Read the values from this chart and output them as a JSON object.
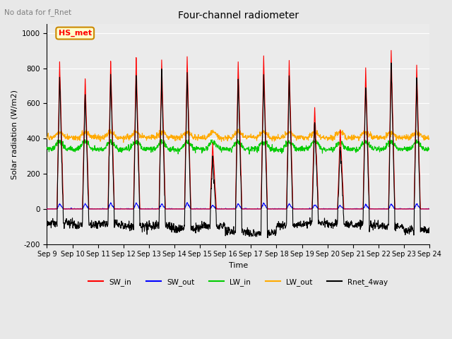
{
  "title": "Four-channel radiometer",
  "subtitle": "No data for f_Rnet",
  "xlabel": "Time",
  "ylabel": "Solar radiation (W/m2)",
  "ylim": [
    -200,
    1050
  ],
  "xlim": [
    0,
    360
  ],
  "background_color": "#e8e8e8",
  "plot_bg_color": "#ebebeb",
  "legend_label": "HS_met",
  "legend_bg": "#ffffcc",
  "legend_border": "#cc8800",
  "series": {
    "SW_in": {
      "color": "#ff0000",
      "lw": 0.8
    },
    "SW_out": {
      "color": "#0000ff",
      "lw": 0.8
    },
    "LW_in": {
      "color": "#00cc00",
      "lw": 0.8
    },
    "LW_out": {
      "color": "#ffaa00",
      "lw": 0.8
    },
    "Rnet_4way": {
      "color": "#000000",
      "lw": 0.8
    }
  },
  "xtick_labels": [
    "Sep 9",
    "Sep 10",
    "Sep 11",
    "Sep 12",
    "Sep 13",
    "Sep 14",
    "Sep 15",
    "Sep 16",
    "Sep 17",
    "Sep 18",
    "Sep 19",
    "Sep 20",
    "Sep 21",
    "Sep 22",
    "Sep 23",
    "Sep 24"
  ],
  "xtick_positions": [
    0,
    24,
    48,
    72,
    96,
    120,
    144,
    168,
    192,
    216,
    240,
    264,
    288,
    312,
    336,
    360
  ],
  "ytick_labels": [
    "-200",
    "0",
    "200",
    "400",
    "600",
    "800",
    "1000"
  ],
  "ytick_values": [
    -200,
    0,
    200,
    400,
    600,
    800,
    1000
  ],
  "grid_color": "#ffffff",
  "n_days": 15,
  "peak_sw_in": [
    840,
    750,
    850,
    860,
    850,
    860,
    375,
    840,
    865,
    840,
    580,
    450,
    800,
    900,
    820
  ],
  "peak_sw_out": [
    30,
    30,
    35,
    35,
    30,
    35,
    20,
    30,
    35,
    30,
    25,
    20,
    25,
    30,
    30
  ],
  "rnet_night": [
    -80,
    -90,
    -85,
    -100,
    -95,
    -110,
    -100,
    -130,
    -140,
    -95,
    -80,
    -85,
    -90,
    -100,
    -120
  ]
}
